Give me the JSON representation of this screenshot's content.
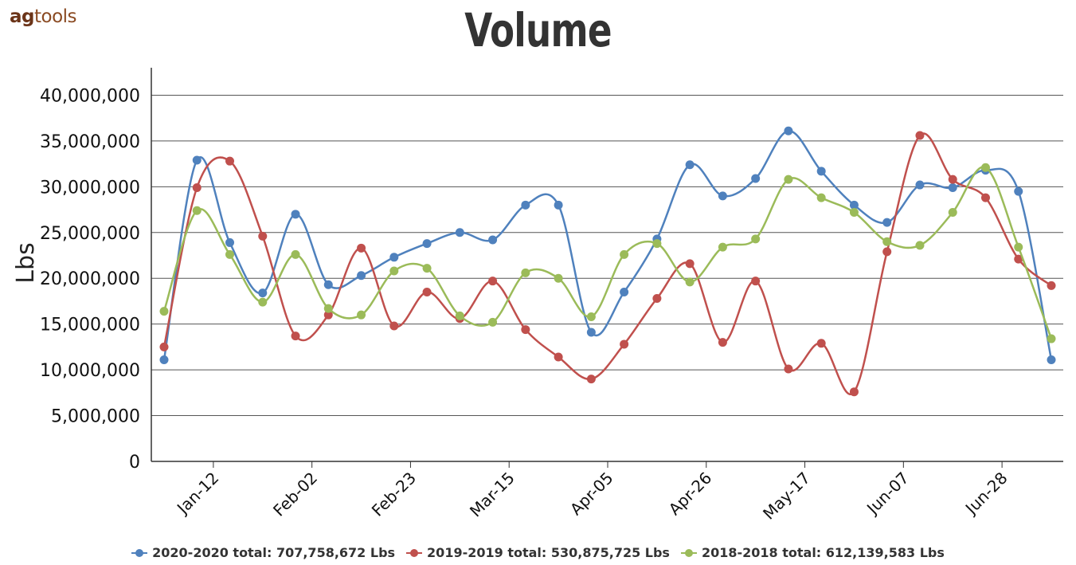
{
  "logo": {
    "prefix": "ag",
    "suffix": "tools"
  },
  "chart_data": {
    "type": "line",
    "title": "Volume",
    "ylabel": "Lbs",
    "xlabel": "",
    "ylim": [
      0,
      43000000
    ],
    "yticks": [
      0,
      5000000,
      10000000,
      15000000,
      20000000,
      25000000,
      30000000,
      35000000,
      40000000
    ],
    "ytick_labels": [
      "0",
      "5,000,000",
      "10,000,000",
      "15,000,000",
      "20,000,000",
      "25,000,000",
      "30,000,000",
      "35,000,000",
      "40,000,000"
    ],
    "xtick_labels": [
      "Jan-12",
      "Feb-02",
      "Feb-23",
      "Mar-15",
      "Apr-05",
      "Apr-26",
      "May-17",
      "Jun-07",
      "Jun-28"
    ],
    "xtick_positions": [
      1.5,
      4.5,
      7.5,
      10.5,
      13.5,
      16.5,
      19.5,
      22.5,
      25.5
    ],
    "x_count": 28,
    "grid": true,
    "legend_position": "bottom",
    "series": [
      {
        "name": "2020-2020 total: 707,758,672 Lbs",
        "color": "#4f81bd",
        "values": [
          11100000,
          32900000,
          23900000,
          18400000,
          27000000,
          19300000,
          20300000,
          22300000,
          23800000,
          25000000,
          24200000,
          28000000,
          28000000,
          14100000,
          18500000,
          24300000,
          32400000,
          29000000,
          30900000,
          36100000,
          31700000,
          28000000,
          26100000,
          30200000,
          29900000,
          31800000,
          29500000,
          11100000
        ]
      },
      {
        "name": "2019-2019 total: 530,875,725 Lbs",
        "color": "#c0504d",
        "values": [
          12500000,
          29900000,
          32800000,
          24600000,
          13700000,
          16000000,
          23300000,
          14800000,
          18500000,
          15600000,
          19700000,
          14400000,
          11400000,
          9000000,
          12800000,
          17800000,
          21600000,
          13000000,
          19700000,
          10100000,
          12900000,
          7600000,
          22900000,
          35600000,
          30800000,
          28800000,
          22100000,
          19200000
        ]
      },
      {
        "name": "2018-2018 total: 612,139,583 Lbs",
        "color": "#9bbb59",
        "values": [
          16400000,
          27400000,
          22600000,
          17400000,
          22600000,
          16700000,
          16000000,
          20800000,
          21100000,
          15900000,
          15200000,
          20600000,
          20000000,
          15800000,
          22600000,
          23800000,
          19600000,
          23400000,
          24300000,
          30800000,
          28800000,
          27200000,
          24000000,
          23600000,
          27200000,
          32100000,
          23400000,
          13400000
        ]
      }
    ]
  }
}
